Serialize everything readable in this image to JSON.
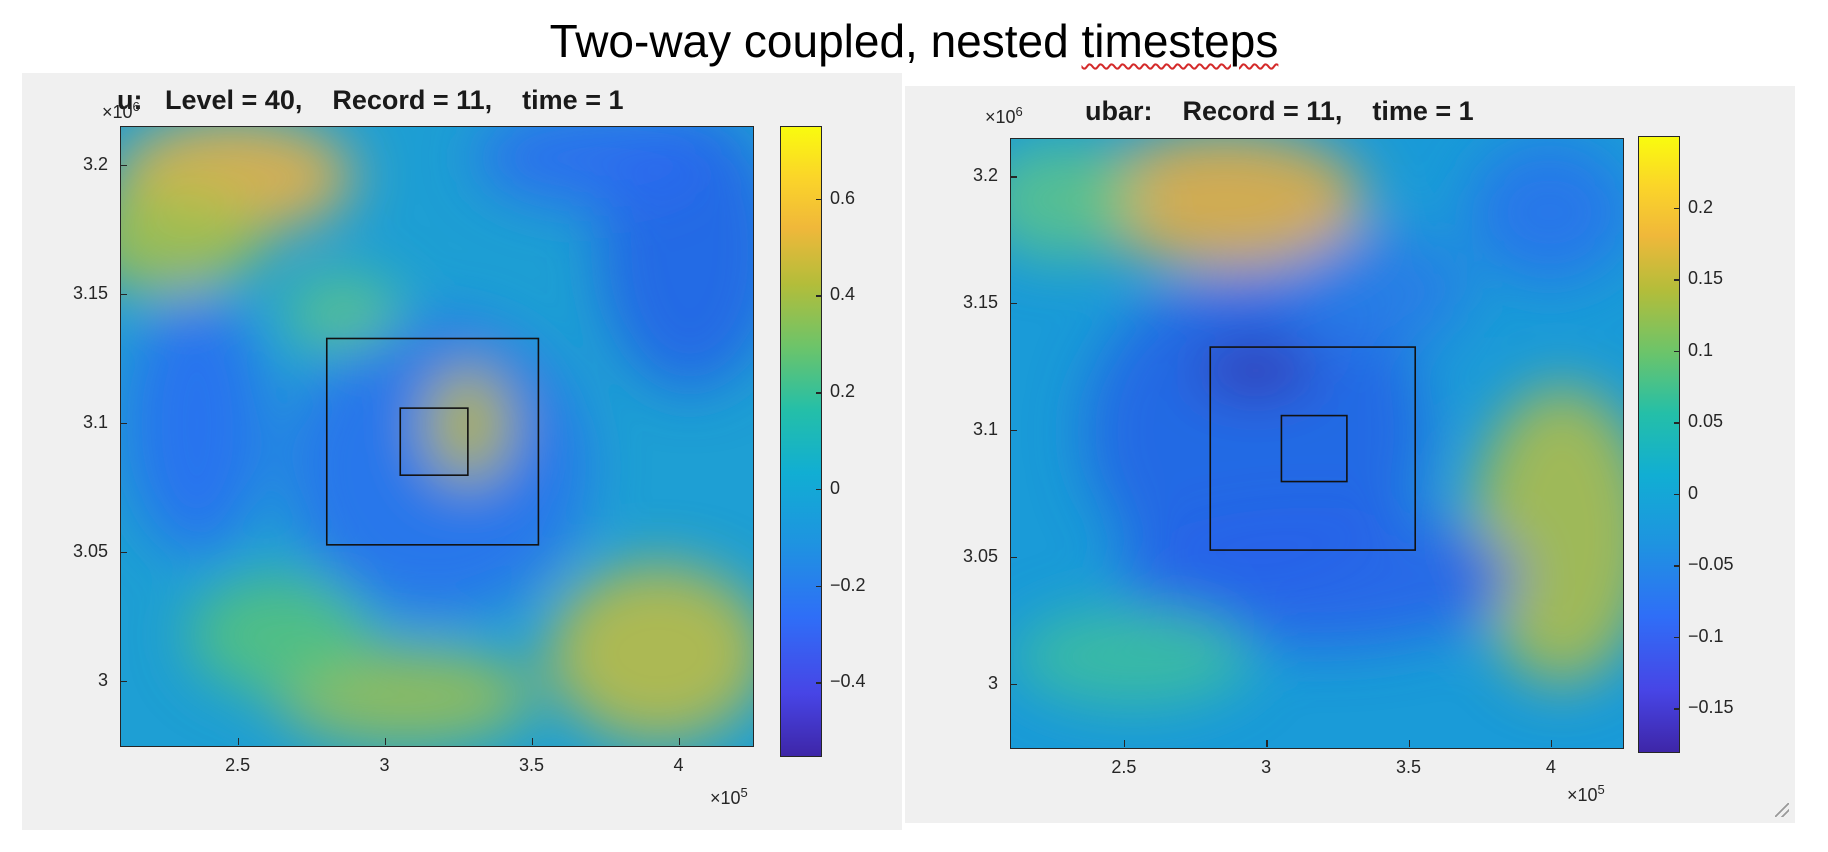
{
  "slide": {
    "title_main": "Two-way coupled, nested ",
    "title_word": "timesteps"
  },
  "chart_data": [
    {
      "type": "heatmap",
      "title": "u:   Level = 40,    Record = 11,    time = 1",
      "x_range": [
        210000,
        425000
      ],
      "y_range": [
        2975000,
        3215000
      ],
      "x_ticks": [
        250000,
        300000,
        350000,
        400000
      ],
      "x_tick_labels": [
        "2.5",
        "3",
        "3.5",
        "4"
      ],
      "y_ticks": [
        3000000,
        3050000,
        3100000,
        3150000,
        3200000
      ],
      "y_tick_labels": [
        "3",
        "3.05",
        "3.1",
        "3.15",
        "3.2"
      ],
      "x_exponent": "10",
      "x_exponent_power": "5",
      "y_exponent": "10",
      "y_exponent_power": "6",
      "x_exponent_prefix": "×",
      "y_exponent_prefix": "×",
      "colorbar_range": [
        -0.55,
        0.75
      ],
      "colorbar_ticks": [
        -0.4,
        -0.2,
        0,
        0.2,
        0.4,
        0.6
      ],
      "colorbar_tick_labels": [
        "-0.4",
        "-0.2",
        "0",
        "0.2",
        "0.4",
        "0.6"
      ],
      "nested_boxes": [
        {
          "x0": 280000,
          "x1": 352000,
          "y0": 3053000,
          "y1": 3133000
        },
        {
          "x0": 305000,
          "x1": 328000,
          "y0": 3080000,
          "y1": 3106000
        }
      ],
      "colormap": "parula",
      "grid": false
    },
    {
      "type": "heatmap",
      "title": "ubar:    Record = 11,    time = 1",
      "x_range": [
        210000,
        425000
      ],
      "y_range": [
        2975000,
        3215000
      ],
      "x_ticks": [
        250000,
        300000,
        350000,
        400000
      ],
      "x_tick_labels": [
        "2.5",
        "3",
        "3.5",
        "4"
      ],
      "y_ticks": [
        3000000,
        3050000,
        3100000,
        3150000,
        3200000
      ],
      "y_tick_labels": [
        "3",
        "3.05",
        "3.1",
        "3.15",
        "3.2"
      ],
      "x_exponent": "10",
      "x_exponent_power": "5",
      "y_exponent": "10",
      "y_exponent_power": "6",
      "x_exponent_prefix": "×",
      "y_exponent_prefix": "×",
      "colorbar_range": [
        -0.18,
        0.25
      ],
      "colorbar_ticks": [
        -0.15,
        -0.1,
        -0.05,
        0,
        0.05,
        0.1,
        0.15,
        0.2
      ],
      "colorbar_tick_labels": [
        "-0.15",
        "-0.1",
        "-0.05",
        "0",
        "0.05",
        "0.1",
        "0.15",
        "0.2"
      ],
      "nested_boxes": [
        {
          "x0": 280000,
          "x1": 352000,
          "y0": 3053000,
          "y1": 3133000
        },
        {
          "x0": 305000,
          "x1": 328000,
          "y0": 3080000,
          "y1": 3106000
        }
      ],
      "colormap": "parula",
      "grid": false
    }
  ]
}
